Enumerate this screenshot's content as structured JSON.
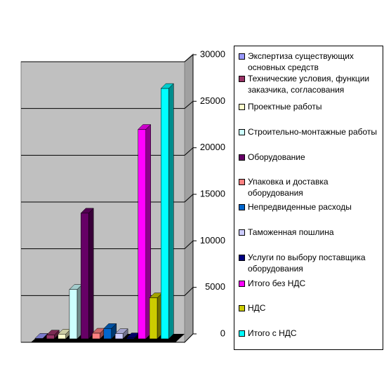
{
  "chart_data": {
    "type": "bar3d",
    "series": [
      {
        "name": "Экспертиза существующих основных средств",
        "color": "#9999ff",
        "values": [
          50
        ]
      },
      {
        "name": "Технические условия, функции заказчика, согласования",
        "color": "#993366",
        "values": [
          400
        ]
      },
      {
        "name": "Проектные работы",
        "color": "#ffffcc",
        "values": [
          500
        ]
      },
      {
        "name": "Строительно-монтажные работы",
        "color": "#ccffff",
        "values": [
          5300
        ]
      },
      {
        "name": "Оборудование",
        "color": "#660066",
        "values": [
          13500
        ]
      },
      {
        "name": "Упаковка и доставка оборудования",
        "color": "#ff8080",
        "values": [
          600
        ]
      },
      {
        "name": "Непредвиденные расходы",
        "color": "#0066cc",
        "values": [
          1100
        ]
      },
      {
        "name": "Таможенная пошлина",
        "color": "#ccccff",
        "values": [
          550
        ]
      },
      {
        "name": "Услуги по выбору поставщика оборудования",
        "color": "#000080",
        "values": [
          100
        ]
      },
      {
        "name": "Итого без НДС",
        "color": "#ff00ff",
        "values": [
          22500
        ]
      },
      {
        "name": "НДС",
        "color": "#cccc00",
        "values": [
          4400
        ]
      },
      {
        "name": "Итого с НДС",
        "color": "#00ffff",
        "values": [
          26900
        ]
      }
    ],
    "ylim": [
      0,
      30000
    ],
    "yticks": [
      0,
      5000,
      10000,
      15000,
      20000,
      25000,
      30000
    ],
    "grid": true,
    "legend": "right"
  }
}
